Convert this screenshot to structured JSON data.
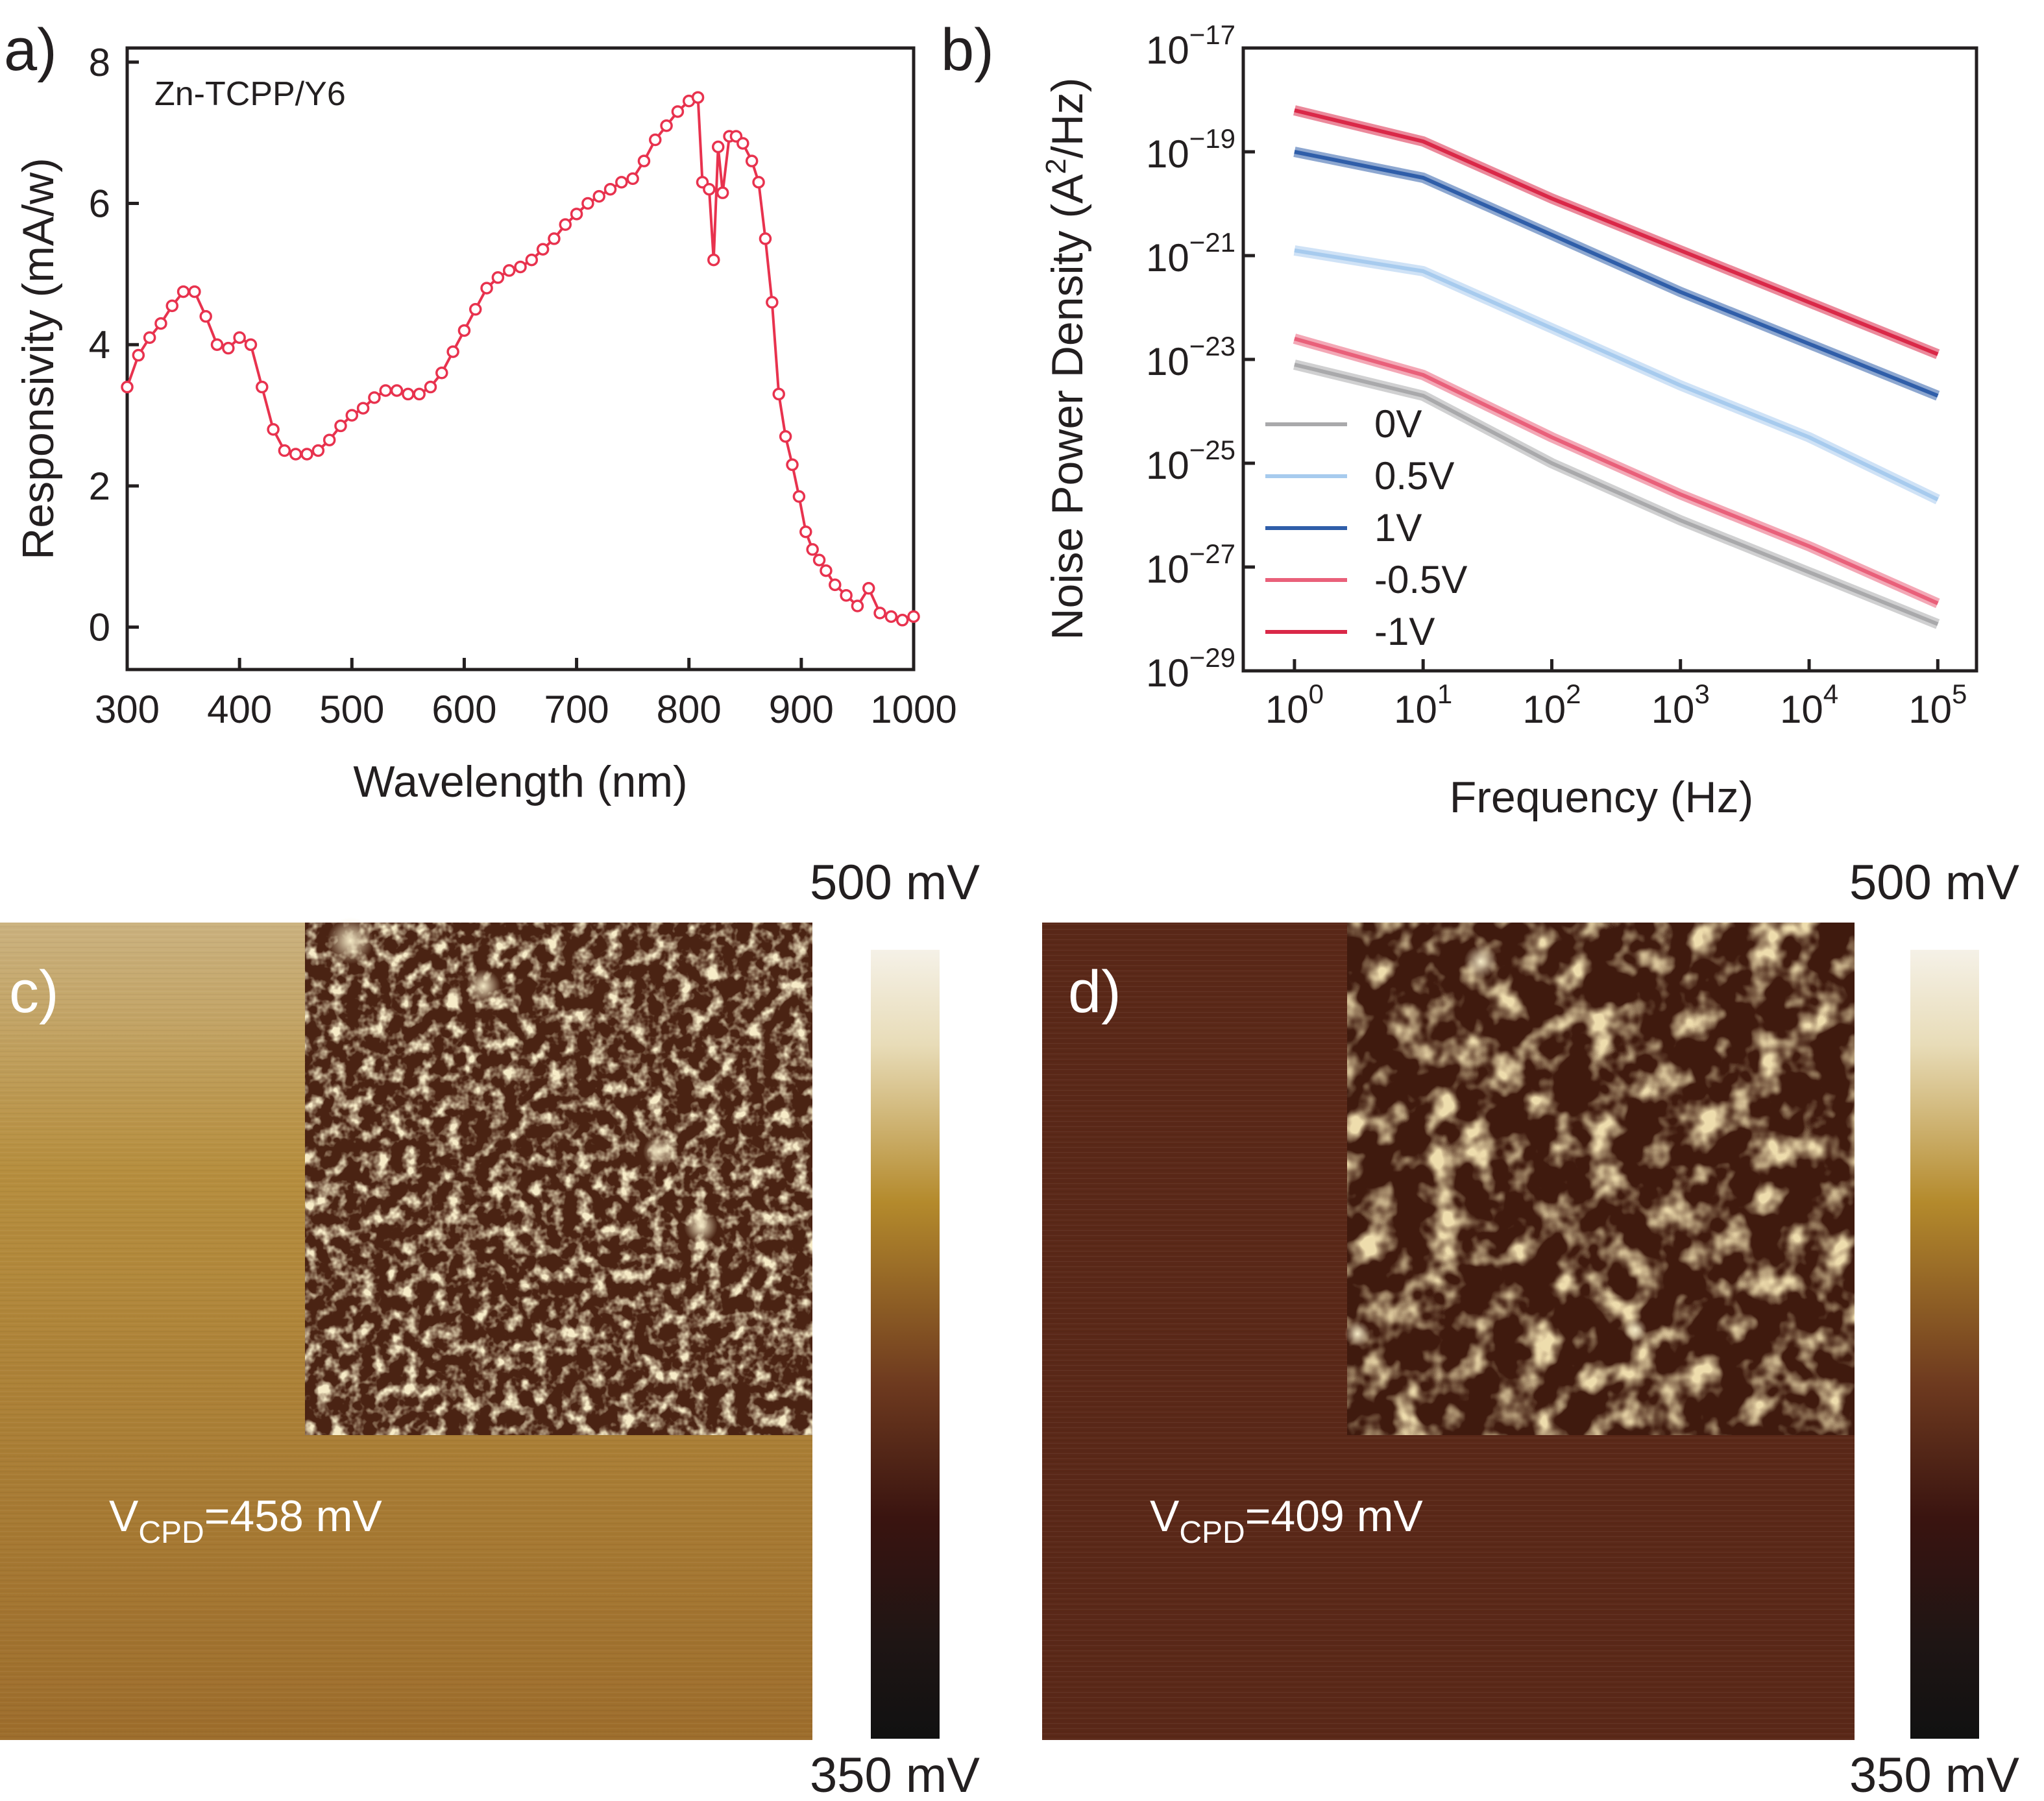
{
  "colors": {
    "series_a": "#e8324e",
    "v0": "#a9a9ab",
    "v05": "#a7cbee",
    "v1": "#2f5ea9",
    "vm05": "#e9607a",
    "vm1": "#da2848"
  },
  "panels": {
    "a": {
      "label": "a)"
    },
    "b": {
      "label": "b)"
    },
    "c": {
      "label": "c)",
      "vcpd_sub": "CPD",
      "vcpd_value": "=458 mV",
      "vcpd_number": 458
    },
    "d": {
      "label": "d)",
      "vcpd_sub": "CPD",
      "vcpd_value": "=409 mV",
      "vcpd_number": 409
    }
  },
  "colorbars": {
    "c": {
      "top": "500 mV",
      "bottom": "350 mV"
    },
    "d": {
      "top": "500 mV",
      "bottom": "350 mV"
    }
  },
  "chart_data": [
    {
      "type": "scatter",
      "title": "",
      "annotation": "Zn-TCPP/Y6",
      "xlabel": "Wavelength (nm)",
      "ylabel": "Responsivity (mA/w)",
      "xlim": [
        300,
        1000
      ],
      "ylim": [
        -0.6,
        8.2
      ],
      "xticks": [
        "300",
        "400",
        "500",
        "600",
        "700",
        "800",
        "900",
        "1000"
      ],
      "yticks": [
        "0",
        "2",
        "4",
        "6",
        "8"
      ],
      "grid": false,
      "series": [
        {
          "x": [
            300,
            310,
            320,
            330,
            340,
            350,
            360,
            370,
            380,
            390,
            400,
            410,
            420,
            430,
            440,
            450,
            460,
            470,
            480,
            490,
            500,
            510,
            520,
            530,
            540,
            550,
            560,
            570,
            580,
            590,
            600,
            610,
            620,
            630,
            640,
            650,
            660,
            670,
            680,
            690,
            700,
            710,
            720,
            730,
            740,
            750,
            760,
            770,
            780,
            790,
            800,
            808,
            812,
            818,
            822,
            826,
            830,
            836,
            842,
            848,
            856,
            862,
            868,
            874,
            880,
            886,
            892,
            898,
            904,
            910,
            916,
            922,
            930,
            940,
            950,
            960,
            970,
            980,
            990,
            1000
          ],
          "y": [
            3.4,
            3.85,
            4.1,
            4.3,
            4.55,
            4.75,
            4.75,
            4.4,
            4.0,
            3.95,
            4.1,
            4.0,
            3.4,
            2.8,
            2.5,
            2.45,
            2.45,
            2.5,
            2.65,
            2.85,
            3.0,
            3.1,
            3.25,
            3.35,
            3.35,
            3.3,
            3.3,
            3.4,
            3.6,
            3.9,
            4.2,
            4.5,
            4.8,
            4.95,
            5.05,
            5.1,
            5.2,
            5.35,
            5.5,
            5.7,
            5.85,
            6.0,
            6.1,
            6.2,
            6.3,
            6.35,
            6.6,
            6.9,
            7.1,
            7.3,
            7.45,
            7.5,
            6.3,
            6.2,
            5.2,
            6.8,
            6.15,
            6.95,
            6.95,
            6.85,
            6.6,
            6.3,
            5.5,
            4.6,
            3.3,
            2.7,
            2.3,
            1.85,
            1.35,
            1.1,
            0.95,
            0.8,
            0.6,
            0.45,
            0.3,
            0.55,
            0.2,
            0.15,
            0.1,
            0.15
          ]
        }
      ]
    },
    {
      "type": "line",
      "title": "",
      "xlabel": "Frequency (Hz)",
      "ylabel": "Noise Power Density (A²/Hz)",
      "x_scale": "log",
      "y_scale": "log",
      "xlim": [
        0.4,
        200000
      ],
      "ylim": [
        1e-29,
        1e-17
      ],
      "xticks": [
        {
          "base": "10",
          "exp": "0"
        },
        {
          "base": "10",
          "exp": "1"
        },
        {
          "base": "10",
          "exp": "2"
        },
        {
          "base": "10",
          "exp": "3"
        },
        {
          "base": "10",
          "exp": "4"
        },
        {
          "base": "10",
          "exp": "5"
        }
      ],
      "yticks": [
        {
          "base": "10",
          "exp": "−17"
        },
        {
          "base": "10",
          "exp": "−19"
        },
        {
          "base": "10",
          "exp": "−21"
        },
        {
          "base": "10",
          "exp": "−23"
        },
        {
          "base": "10",
          "exp": "−25"
        },
        {
          "base": "10",
          "exp": "−27"
        },
        {
          "base": "10",
          "exp": "−29"
        }
      ],
      "ylabel_parts": {
        "main": "Noise Power Density (A",
        "sup": "2",
        "tail": "/Hz)"
      },
      "legend": "lower-left",
      "grid": false,
      "series": [
        {
          "name": "0V",
          "x": [
            1,
            10,
            100,
            1000,
            10000,
            100000
          ],
          "log10_y": [
            -23.1,
            -23.7,
            -25.0,
            -26.1,
            -27.1,
            -28.1
          ]
        },
        {
          "name": "0.5V",
          "x": [
            1,
            10,
            100,
            1000,
            10000,
            100000
          ],
          "log10_y": [
            -20.9,
            -21.3,
            -22.4,
            -23.5,
            -24.5,
            -25.7
          ]
        },
        {
          "name": "1V",
          "x": [
            1,
            10,
            100,
            1000,
            10000,
            100000
          ],
          "log10_y": [
            -19.0,
            -19.5,
            -20.6,
            -21.7,
            -22.7,
            -23.7
          ]
        },
        {
          "name": "-0.5V",
          "x": [
            1,
            10,
            100,
            1000,
            10000,
            100000
          ],
          "log10_y": [
            -22.6,
            -23.3,
            -24.5,
            -25.6,
            -26.6,
            -27.7
          ]
        },
        {
          "name": "-1V",
          "x": [
            1,
            10,
            100,
            1000,
            10000,
            100000
          ],
          "log10_y": [
            -18.2,
            -18.8,
            -19.9,
            -20.9,
            -21.9,
            -22.9
          ]
        }
      ]
    }
  ]
}
